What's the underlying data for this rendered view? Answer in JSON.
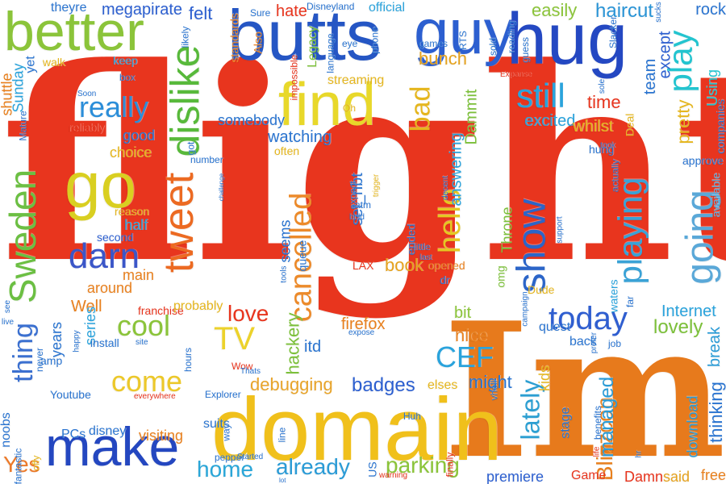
{
  "words": [
    {
      "text": "flight",
      "color": "#e8351e"
    },
    {
      "text": "Im",
      "color": "#e77a1c"
    },
    {
      "text": "domain",
      "color": "#f0c01b"
    },
    {
      "text": "butts",
      "color": "#2556c4"
    },
    {
      "text": "guy",
      "color": "#2c5fd0"
    },
    {
      "text": "hug",
      "color": "#2448c2"
    },
    {
      "text": "better",
      "color": "#8bc43a"
    },
    {
      "text": "find",
      "color": "#e8d82a"
    },
    {
      "text": "go",
      "color": "#d9cf21"
    },
    {
      "text": "make",
      "color": "#2447c0"
    },
    {
      "text": "tweet",
      "color": "#ec6a22"
    },
    {
      "text": "dislike",
      "color": "#58b93b"
    },
    {
      "text": "Sweden",
      "color": "#6cbf43"
    },
    {
      "text": "darn",
      "color": "#3b56c8"
    },
    {
      "text": "show",
      "color": "#2c65c8"
    },
    {
      "text": "going",
      "color": "#5aa8d8"
    },
    {
      "text": "playing",
      "color": "#3aa2d6"
    },
    {
      "text": "today",
      "color": "#2f5ed0"
    },
    {
      "text": "cancelled",
      "color": "#ec8a2a"
    },
    {
      "text": "hello",
      "color": "#e5c822"
    },
    {
      "text": "play",
      "color": "#23c4cf"
    },
    {
      "text": "still",
      "color": "#2aa3dc"
    },
    {
      "text": "really",
      "color": "#2b8ed9"
    },
    {
      "text": "TV",
      "color": "#ecd22b"
    },
    {
      "text": "cool",
      "color": "#8bc43a"
    },
    {
      "text": "come",
      "color": "#ecc82a"
    },
    {
      "text": "thing",
      "color": "#3b70d0"
    },
    {
      "text": "love",
      "color": "#e8351e"
    },
    {
      "text": "CEF",
      "color": "#2aa3dc"
    },
    {
      "text": "lately",
      "color": "#2c9fd2"
    },
    {
      "text": "home",
      "color": "#2aa6d8"
    },
    {
      "text": "already",
      "color": "#2a9bd6"
    },
    {
      "text": "parking",
      "color": "#8bc43a"
    },
    {
      "text": "Yes",
      "color": "#ec7a2a"
    },
    {
      "text": "bad",
      "color": "#e5b61e"
    },
    {
      "text": "book",
      "color": "#e5a21e"
    },
    {
      "text": "badges",
      "color": "#2c5fd0"
    },
    {
      "text": "debugging",
      "color": "#e8a42a"
    },
    {
      "text": "lovely",
      "color": "#7cc03a"
    },
    {
      "text": "Internet",
      "color": "#2aa3dc"
    },
    {
      "text": "Blizzcon",
      "color": "#e8801e"
    },
    {
      "text": "managed",
      "color": "#2a9bd6"
    },
    {
      "text": "thinking",
      "color": "#2a74d0"
    },
    {
      "text": "haircut",
      "color": "#2a94d6"
    },
    {
      "text": "easily",
      "color": "#8bc43a"
    },
    {
      "text": "time",
      "color": "#e8351e"
    },
    {
      "text": "excited",
      "color": "#2aa3dc"
    },
    {
      "text": "whilst",
      "color": "#e5b61e"
    },
    {
      "text": "pretty",
      "color": "#e5b61e"
    },
    {
      "text": "except",
      "color": "#2c5fd0"
    },
    {
      "text": "team",
      "color": "#2a74d0"
    },
    {
      "text": "rock",
      "color": "#2a74d0"
    },
    {
      "text": "Using",
      "color": "#23c4cf"
    },
    {
      "text": "companies",
      "color": "#2a74d0"
    },
    {
      "text": "available",
      "color": "#5aa8d8"
    },
    {
      "text": "approve",
      "color": "#2a74d0"
    },
    {
      "text": "break",
      "color": "#2a9bd6"
    },
    {
      "text": "free",
      "color": "#e8801e"
    },
    {
      "text": "said",
      "color": "#e5a21e"
    },
    {
      "text": "download",
      "color": "#2a9bd6"
    },
    {
      "text": "Damn",
      "color": "#e8351e"
    },
    {
      "text": "Game",
      "color": "#e8351e"
    },
    {
      "text": "premiere",
      "color": "#2c5fd0"
    },
    {
      "text": "stage",
      "color": "#2a74d0"
    },
    {
      "text": "kids",
      "color": "#e5b61e"
    },
    {
      "text": "might",
      "color": "#2a74d0"
    },
    {
      "text": "elses",
      "color": "#e5b61e"
    },
    {
      "text": "nice",
      "color": "#e8801e"
    },
    {
      "text": "bit",
      "color": "#8bc43a"
    },
    {
      "text": "firefox",
      "color": "#e8801e"
    },
    {
      "text": "hackery",
      "color": "#7cc03a"
    },
    {
      "text": "itd",
      "color": "#2a74d0"
    },
    {
      "text": "watching",
      "color": "#2a74d0"
    },
    {
      "text": "somebody",
      "color": "#2a74d0"
    },
    {
      "text": "streaming",
      "color": "#e5b61e"
    },
    {
      "text": "answering",
      "color": "#2aa3dc"
    },
    {
      "text": "Dammit",
      "color": "#7cc03a"
    },
    {
      "text": "set_nbt",
      "color": "#2a74d0"
    },
    {
      "text": "seems",
      "color": "#2a74d0"
    },
    {
      "text": "bunch",
      "color": "#e5a21e"
    },
    {
      "text": "Legacy",
      "color": "#7cc03a"
    },
    {
      "text": "hate",
      "color": "#e8351e"
    },
    {
      "text": "felt",
      "color": "#2c5fd0"
    },
    {
      "text": "megapirate",
      "color": "#2c5fd0"
    },
    {
      "text": "theyre",
      "color": "#2a74d0"
    },
    {
      "text": "official",
      "color": "#2aa3dc"
    },
    {
      "text": "shuttle",
      "color": "#e8801e"
    },
    {
      "text": "Sunday",
      "color": "#2aa3dc"
    },
    {
      "text": "yet",
      "color": "#2a74d0"
    },
    {
      "text": "walk",
      "color": "#e5b61e"
    },
    {
      "text": "keep",
      "color": "#2aa3dc"
    },
    {
      "text": "good",
      "color": "#2a74d0"
    },
    {
      "text": "choice",
      "color": "#e5b61e"
    },
    {
      "text": "reliably",
      "color": "#e8351e"
    },
    {
      "text": "reason",
      "color": "#e5b61e"
    },
    {
      "text": "half",
      "color": "#2aa3dc"
    },
    {
      "text": "second",
      "color": "#2c5fd0"
    },
    {
      "text": "main",
      "color": "#e8801e"
    },
    {
      "text": "around",
      "color": "#e8801e"
    },
    {
      "text": "Well",
      "color": "#e8801e"
    },
    {
      "text": "franchise",
      "color": "#e8351e"
    },
    {
      "text": "probably",
      "color": "#e5b61e"
    },
    {
      "text": "years",
      "color": "#2a74d0"
    },
    {
      "text": "series",
      "color": "#2aa3dc"
    },
    {
      "text": "install",
      "color": "#2a74d0"
    },
    {
      "text": "amp",
      "color": "#2a74d0"
    },
    {
      "text": "Youtube",
      "color": "#2a74d0"
    },
    {
      "text": "noobs",
      "color": "#2a74d0"
    },
    {
      "text": "PCs",
      "color": "#2a74d0"
    },
    {
      "text": "disney",
      "color": "#2a74d0"
    },
    {
      "text": "visiting",
      "color": "#e8801e"
    },
    {
      "text": "suits",
      "color": "#2a74d0"
    },
    {
      "text": "hours",
      "color": "#2a74d0"
    },
    {
      "text": "pepper",
      "color": "#2a74d0"
    },
    {
      "text": "line",
      "color": "#2a74d0"
    },
    {
      "text": "way",
      "color": "#2a74d0"
    },
    {
      "text": "Explorer",
      "color": "#2a74d0"
    },
    {
      "text": "everywhere",
      "color": "#e8351e"
    },
    {
      "text": "LAX",
      "color": "#e8351e"
    },
    {
      "text": "opened",
      "color": "#e8801e"
    },
    {
      "text": "Throne",
      "color": "#7cc03a"
    },
    {
      "text": "Dude",
      "color": "#e5b61e"
    },
    {
      "text": "omg",
      "color": "#7cc03a"
    },
    {
      "text": "dr",
      "color": "#2a74d0"
    },
    {
      "text": "ended",
      "color": "#2a74d0"
    },
    {
      "text": "little",
      "color": "#2a74d0"
    },
    {
      "text": "queue",
      "color": "#2a74d0"
    },
    {
      "text": "atm",
      "color": "#2a74d0"
    },
    {
      "text": "expect",
      "color": "#2a74d0"
    },
    {
      "text": "bold",
      "color": "#2a74d0"
    },
    {
      "text": "hung",
      "color": "#2a74d0"
    },
    {
      "text": "actually",
      "color": "#2a74d0"
    },
    {
      "text": "waters",
      "color": "#2aa3dc"
    },
    {
      "text": "far",
      "color": "#2a74d0"
    },
    {
      "text": "back",
      "color": "#2a74d0"
    },
    {
      "text": "job",
      "color": "#2a74d0"
    },
    {
      "text": "quest",
      "color": "#2a74d0"
    },
    {
      "text": "Deal",
      "color": "#e5b61e"
    },
    {
      "text": "Expanse",
      "color": "#e8351e"
    },
    {
      "text": "guess",
      "color": "#2a74d0"
    },
    {
      "text": "Slacker",
      "color": "#2a74d0"
    },
    {
      "text": "sucks",
      "color": "#2a74d0"
    },
    {
      "text": "Sure",
      "color": "#2a74d0"
    },
    {
      "text": "Disneyland",
      "color": "#2a74d0"
    },
    {
      "text": "standards",
      "color": "#e8801e"
    },
    {
      "text": "Also",
      "color": "#e8801e"
    },
    {
      "text": "likely",
      "color": "#2a74d0"
    },
    {
      "text": "impossible",
      "color": "#e8351e"
    },
    {
      "text": "language",
      "color": "#2a74d0"
    },
    {
      "text": "phone",
      "color": "#2a74d0"
    },
    {
      "text": "eye",
      "color": "#2a74d0"
    },
    {
      "text": "games",
      "color": "#2a74d0"
    },
    {
      "text": "RTS",
      "color": "#2a74d0"
    },
    {
      "text": "sold",
      "color": "#2a74d0"
    },
    {
      "text": "reading",
      "color": "#2a74d0"
    },
    {
      "text": "Oh",
      "color": "#e5b61e"
    },
    {
      "text": "often",
      "color": "#e5b61e"
    },
    {
      "text": "got",
      "color": "#2a74d0"
    },
    {
      "text": "number",
      "color": "#2a74d0"
    },
    {
      "text": "challenge",
      "color": "#2a74d0"
    },
    {
      "text": "fantastic",
      "color": "#2a74d0"
    },
    {
      "text": "offy",
      "color": "#e5b61e"
    },
    {
      "text": "never",
      "color": "#2a74d0"
    },
    {
      "text": "happy",
      "color": "#2a74d0"
    },
    {
      "text": "see",
      "color": "#2a74d0"
    },
    {
      "text": "live",
      "color": "#2a74d0"
    },
    {
      "text": "box",
      "color": "#2a74d0"
    },
    {
      "text": "Soon",
      "color": "#2a74d0"
    },
    {
      "text": "Mature",
      "color": "#2a74d0"
    },
    {
      "text": "Wow",
      "color": "#e8351e"
    },
    {
      "text": "Thats",
      "color": "#2a74d0"
    },
    {
      "text": "expose",
      "color": "#2a74d0"
    },
    {
      "text": "Started",
      "color": "#2a74d0"
    },
    {
      "text": "lot",
      "color": "#2a74d0"
    },
    {
      "text": "US",
      "color": "#2a74d0"
    },
    {
      "text": "warning",
      "color": "#e8351e"
    },
    {
      "text": "finally",
      "color": "#e8351e"
    },
    {
      "text": "Huh",
      "color": "#2a74d0"
    },
    {
      "text": "vhell",
      "color": "#2a74d0"
    },
    {
      "text": "benefits",
      "color": "#2a74d0"
    },
    {
      "text": "life",
      "color": "#e8351e"
    },
    {
      "text": "support",
      "color": "#2a74d0"
    },
    {
      "text": "took",
      "color": "#2a74d0"
    },
    {
      "text": "prefer",
      "color": "#2a74d0"
    },
    {
      "text": "campaign",
      "color": "#2a74d0"
    },
    {
      "text": "tools",
      "color": "#2a74d0"
    },
    {
      "text": "decent",
      "color": "#2a74d0"
    },
    {
      "text": "trigger",
      "color": "#e5b61e"
    },
    {
      "text": "last",
      "color": "#2a74d0"
    },
    {
      "text": "site",
      "color": "#2a74d0"
    },
    {
      "text": "hr",
      "color": "#2a74d0"
    },
    {
      "text": "sole",
      "color": "#2a74d0"
    }
  ]
}
